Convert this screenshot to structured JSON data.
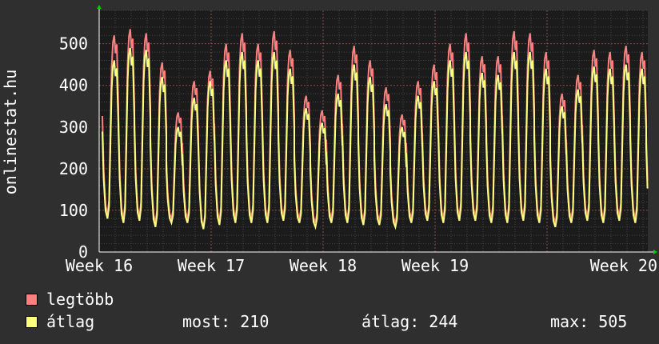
{
  "chart_data": {
    "type": "line",
    "title": "",
    "ylabel": "onlinestat.hu",
    "ylim": [
      0,
      580
    ],
    "yticks": [
      0,
      100,
      200,
      300,
      400,
      500
    ],
    "xticks": [
      "Week 16",
      "Week 17",
      "Week 18",
      "Week 19",
      "Week 20"
    ],
    "grid": true,
    "series": [
      {
        "name": "legtöbb",
        "color": "#ff7f7f",
        "daily_peaks": [
          520,
          535,
          525,
          455,
          335,
          410,
          435,
          500,
          525,
          500,
          530,
          485,
          375,
          340,
          425,
          495,
          460,
          395,
          330,
          410,
          450,
          500,
          525,
          470,
          470,
          530,
          525,
          480,
          380,
          425,
          485,
          480,
          495,
          480,
          445
        ],
        "daily_troughs": [
          90,
          80,
          85,
          70,
          80,
          80,
          60,
          75,
          80,
          80,
          80,
          85,
          80,
          70,
          80,
          80,
          75,
          75,
          70,
          80,
          85,
          80,
          85,
          85,
          80,
          80,
          85,
          80,
          70,
          80,
          85,
          80,
          85,
          80,
          80
        ]
      },
      {
        "name": "átlag",
        "color": "#ffff7f",
        "daily_peaks": [
          460,
          490,
          485,
          420,
          300,
          370,
          410,
          460,
          480,
          460,
          480,
          440,
          345,
          310,
          380,
          450,
          420,
          355,
          300,
          375,
          410,
          460,
          480,
          430,
          425,
          480,
          480,
          440,
          350,
          390,
          445,
          440,
          450,
          440,
          400
        ],
        "daily_troughs": [
          80,
          70,
          75,
          60,
          70,
          70,
          55,
          65,
          70,
          70,
          70,
          75,
          70,
          60,
          70,
          70,
          65,
          65,
          60,
          70,
          75,
          70,
          75,
          75,
          70,
          70,
          75,
          70,
          60,
          70,
          75,
          70,
          75,
          70,
          70
        ]
      }
    ]
  },
  "legend": {
    "items": [
      {
        "label": "legtöbb",
        "color": "#ff7f7f"
      },
      {
        "label": "átlag",
        "color": "#ffff7f"
      }
    ],
    "stats": {
      "most": "most: 210",
      "atlag": "átlag: 244",
      "max": "max: 505"
    }
  }
}
